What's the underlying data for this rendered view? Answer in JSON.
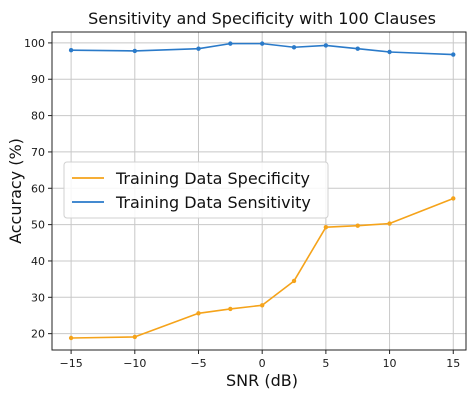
{
  "chart_data": {
    "type": "line",
    "title": "Sensitivity and Specificity with 100 Clauses",
    "xlabel": "SNR (dB)",
    "ylabel": "Accuracy (%)",
    "x": [
      -15,
      -10,
      -5,
      -2.5,
      0,
      2.5,
      5,
      7.5,
      10,
      15
    ],
    "xlim": [
      -16.5,
      16
    ],
    "ylim": [
      15.5,
      103
    ],
    "xticks": [
      -15,
      -10,
      -5,
      0,
      5,
      10,
      15
    ],
    "xtick_labels": [
      "−15",
      "−10",
      "−5",
      "0",
      "5",
      "10",
      "15"
    ],
    "yticks": [
      20,
      30,
      40,
      50,
      60,
      70,
      80,
      90,
      100
    ],
    "ytick_labels": [
      "20",
      "30",
      "40",
      "50",
      "60",
      "70",
      "80",
      "90",
      "100"
    ],
    "grid": true,
    "legend_position": "center-left",
    "series": [
      {
        "name": "Training Data Specificity",
        "color": "#f5a31a",
        "x": [
          -15,
          -10,
          -5,
          -2.5,
          0,
          2.5,
          5,
          7.5,
          10,
          15
        ],
        "values": [
          18.8,
          19.1,
          25.6,
          26.8,
          27.8,
          34.5,
          49.3,
          49.7,
          50.3,
          57.2
        ]
      },
      {
        "name": "Training Data Sensitivity",
        "color": "#2a7ac9",
        "x": [
          -15,
          -10,
          -5,
          -2.5,
          0,
          2.5,
          5,
          7.5,
          10,
          15
        ],
        "values": [
          98.0,
          97.8,
          98.4,
          99.8,
          99.8,
          98.8,
          99.3,
          98.4,
          97.5,
          96.8
        ]
      }
    ]
  }
}
